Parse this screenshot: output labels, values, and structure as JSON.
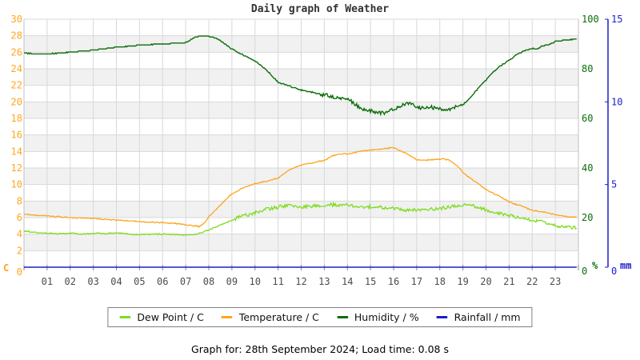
{
  "title": "Daily graph of Weather",
  "caption": "Graph for: 28th September 2024; Load time: 0.08 s",
  "legend": [
    {
      "label": "Dew Point / C",
      "color": "#7ddd1d"
    },
    {
      "label": "Temperature / C",
      "color": "#ffa41c"
    },
    {
      "label": "Humidity / %",
      "color": "#0a6d0a"
    },
    {
      "label": "Rainfall / mm",
      "color": "#1d1dc8"
    }
  ],
  "chart_data": {
    "type": "line",
    "title": "Daily graph of Weather",
    "x_unit": "hour of day",
    "x_range": [
      0,
      24
    ],
    "x_labels": [
      "01",
      "02",
      "03",
      "04",
      "05",
      "06",
      "07",
      "08",
      "09",
      "10",
      "11",
      "12",
      "13",
      "14",
      "15",
      "16",
      "17",
      "18",
      "19",
      "20",
      "21",
      "22",
      "23"
    ],
    "axes": {
      "temperature": {
        "unit": "C",
        "min": 0,
        "max": 30,
        "color": "#ffa41c",
        "tick_labels": [
          "30",
          "28",
          "26",
          "24",
          "22",
          "20",
          "18",
          "16",
          "14",
          "12",
          "10",
          "8",
          "6",
          "4",
          "2",
          "0"
        ],
        "tick_values": [
          30,
          28,
          26,
          24,
          22,
          20,
          18,
          16,
          14,
          12,
          10,
          8,
          6,
          4,
          2,
          0
        ]
      },
      "humidity": {
        "unit": "%",
        "min": 0,
        "max": 100,
        "color": "#0a6d0a",
        "tick_labels": [
          "100",
          "80",
          "60",
          "40",
          "20",
          "0"
        ],
        "tick_values": [
          100,
          80,
          60,
          40,
          20,
          0
        ]
      },
      "rainfall": {
        "unit": "mm",
        "min": 0,
        "max": 15,
        "color": "#1d1dc8",
        "tick_labels": [
          "15",
          "10",
          "5",
          "0"
        ],
        "tick_values": [
          15,
          10,
          5,
          0
        ]
      }
    },
    "style": {
      "band_fill": "#f1f1f1",
      "grid_color": "#d8d8d8",
      "border_color": "#c0c0c0",
      "tick_color": "#8a8a8a",
      "x_label_color": "#4d4d4d",
      "title_color": "#333333",
      "rain_axis_x": 760
    },
    "series": [
      {
        "name": "Humidity / %",
        "axis": "humidity",
        "color": "#0a6d0a",
        "width": 1.4,
        "noise_base": 0.12,
        "noise": 0.7,
        "noise_window": [
          12.8,
          18.7
        ],
        "quant": 0.4,
        "points": [
          [
            0,
            86.3
          ],
          [
            0.5,
            86.0
          ],
          [
            1,
            86.0
          ],
          [
            1.5,
            86.3
          ],
          [
            2,
            86.8
          ],
          [
            2.5,
            87.2
          ],
          [
            3,
            87.5
          ],
          [
            3.5,
            88.1
          ],
          [
            4,
            88.7
          ],
          [
            4.5,
            89.0
          ],
          [
            5,
            89.5
          ],
          [
            5.5,
            89.8
          ],
          [
            6,
            90.0
          ],
          [
            6.5,
            90.3
          ],
          [
            7,
            90.6
          ],
          [
            7.2,
            91.5
          ],
          [
            7.4,
            92.8
          ],
          [
            7.6,
            93.1
          ],
          [
            8,
            93.1
          ],
          [
            8.3,
            92.3
          ],
          [
            8.6,
            90.8
          ],
          [
            9,
            88.0
          ],
          [
            9.5,
            85.5
          ],
          [
            10,
            83.2
          ],
          [
            10.5,
            79.5
          ],
          [
            11,
            74.6
          ],
          [
            11.5,
            73.0
          ],
          [
            12,
            71.4
          ],
          [
            12.5,
            70.5
          ],
          [
            13,
            69.5
          ],
          [
            13.5,
            68.5
          ],
          [
            14,
            68.0
          ],
          [
            14.3,
            66.0
          ],
          [
            14.6,
            63.5
          ],
          [
            15,
            63.0
          ],
          [
            15.3,
            62.5
          ],
          [
            15.6,
            62.3
          ],
          [
            16,
            63.5
          ],
          [
            16.4,
            65.5
          ],
          [
            16.7,
            66.3
          ],
          [
            17,
            64.5
          ],
          [
            17.3,
            64.0
          ],
          [
            17.6,
            64.5
          ],
          [
            18,
            63.8
          ],
          [
            18.3,
            63.5
          ],
          [
            18.6,
            64.5
          ],
          [
            19,
            65.5
          ],
          [
            19.3,
            68.0
          ],
          [
            19.6,
            71.5
          ],
          [
            20,
            75.5
          ],
          [
            20.3,
            78.5
          ],
          [
            20.6,
            81.0
          ],
          [
            21,
            83.5
          ],
          [
            21.3,
            85.5
          ],
          [
            21.6,
            87.0
          ],
          [
            22,
            88.3
          ],
          [
            22.2,
            88.0
          ],
          [
            22.4,
            89.0
          ],
          [
            22.6,
            89.5
          ],
          [
            22.8,
            90.0
          ],
          [
            23,
            91.0
          ],
          [
            23.3,
            91.3
          ],
          [
            23.6,
            91.8
          ],
          [
            23.95,
            92.0
          ]
        ]
      },
      {
        "name": "Temperature / C",
        "axis": "temperature",
        "color": "#ffa41c",
        "width": 1.3,
        "noise_base": 0.05,
        "noise": 0,
        "noise_window": [
          0,
          0
        ],
        "quant": 0.08,
        "points": [
          [
            0,
            6.4
          ],
          [
            0.5,
            6.3
          ],
          [
            1,
            6.2
          ],
          [
            1.5,
            6.1
          ],
          [
            2,
            6.0
          ],
          [
            2.5,
            5.95
          ],
          [
            3,
            5.9
          ],
          [
            3.5,
            5.8
          ],
          [
            4,
            5.7
          ],
          [
            4.5,
            5.6
          ],
          [
            5,
            5.5
          ],
          [
            5.5,
            5.45
          ],
          [
            6,
            5.4
          ],
          [
            6.5,
            5.3
          ],
          [
            7,
            5.15
          ],
          [
            7.3,
            5.0
          ],
          [
            7.6,
            4.95
          ],
          [
            7.8,
            5.3
          ],
          [
            8,
            6.1
          ],
          [
            8.5,
            7.5
          ],
          [
            9,
            8.9
          ],
          [
            9.5,
            9.6
          ],
          [
            10,
            10.1
          ],
          [
            10.5,
            10.4
          ],
          [
            11,
            10.8
          ],
          [
            11.25,
            11.3
          ],
          [
            11.5,
            11.8
          ],
          [
            11.75,
            12.1
          ],
          [
            12,
            12.4
          ],
          [
            12.5,
            12.6
          ],
          [
            12.75,
            12.8
          ],
          [
            13,
            12.9
          ],
          [
            13.3,
            13.4
          ],
          [
            13.6,
            13.7
          ],
          [
            14,
            13.7
          ],
          [
            14.5,
            14.0
          ],
          [
            15,
            14.2
          ],
          [
            15.5,
            14.3
          ],
          [
            15.9,
            14.45
          ],
          [
            16.1,
            14.35
          ],
          [
            16.3,
            14.1
          ],
          [
            16.6,
            13.7
          ],
          [
            17,
            13.0
          ],
          [
            17.3,
            12.9
          ],
          [
            17.6,
            13.0
          ],
          [
            18,
            13.05
          ],
          [
            18.2,
            13.1
          ],
          [
            18.4,
            12.95
          ],
          [
            18.6,
            12.6
          ],
          [
            18.8,
            12.1
          ],
          [
            19,
            11.5
          ],
          [
            19.3,
            10.8
          ],
          [
            19.6,
            10.2
          ],
          [
            20,
            9.4
          ],
          [
            20.3,
            8.95
          ],
          [
            20.6,
            8.55
          ],
          [
            21,
            7.9
          ],
          [
            21.3,
            7.6
          ],
          [
            21.6,
            7.35
          ],
          [
            22,
            6.9
          ],
          [
            22.3,
            6.75
          ],
          [
            22.6,
            6.6
          ],
          [
            23,
            6.35
          ],
          [
            23.3,
            6.2
          ],
          [
            23.6,
            6.1
          ],
          [
            23.95,
            6.05
          ]
        ]
      },
      {
        "name": "Dew Point / C",
        "axis": "temperature",
        "color": "#7ddd1d",
        "width": 1.3,
        "noise_base": 0.05,
        "noise": 0.2,
        "noise_window": [
          9,
          23.9
        ],
        "quant": 0.08,
        "points": [
          [
            0,
            4.4
          ],
          [
            0.3,
            4.3
          ],
          [
            0.6,
            4.15
          ],
          [
            1,
            4.1
          ],
          [
            1.5,
            4.05
          ],
          [
            2,
            4.1
          ],
          [
            2.5,
            4.0
          ],
          [
            3,
            4.1
          ],
          [
            3.5,
            4.05
          ],
          [
            4,
            4.15
          ],
          [
            4.3,
            4.1
          ],
          [
            4.6,
            4.0
          ],
          [
            5,
            3.95
          ],
          [
            5.5,
            4.0
          ],
          [
            6,
            4.0
          ],
          [
            6.5,
            3.95
          ],
          [
            7,
            3.9
          ],
          [
            7.3,
            3.9
          ],
          [
            7.6,
            4.1
          ],
          [
            8,
            4.5
          ],
          [
            8.5,
            5.1
          ],
          [
            9,
            5.7
          ],
          [
            9.5,
            6.2
          ],
          [
            10,
            6.6
          ],
          [
            10.5,
            7.0
          ],
          [
            11,
            7.25
          ],
          [
            11.5,
            7.5
          ],
          [
            12,
            7.3
          ],
          [
            12.5,
            7.45
          ],
          [
            13,
            7.3
          ],
          [
            13.3,
            7.6
          ],
          [
            13.6,
            7.4
          ],
          [
            14,
            7.5
          ],
          [
            14.5,
            7.3
          ],
          [
            15,
            7.35
          ],
          [
            15.5,
            7.25
          ],
          [
            16,
            7.1
          ],
          [
            16.5,
            6.95
          ],
          [
            17,
            6.9
          ],
          [
            17.5,
            7.0
          ],
          [
            18,
            7.1
          ],
          [
            18.5,
            7.35
          ],
          [
            19,
            7.5
          ],
          [
            19.3,
            7.55
          ],
          [
            19.6,
            7.3
          ],
          [
            20,
            6.9
          ],
          [
            20.5,
            6.55
          ],
          [
            21,
            6.25
          ],
          [
            21.5,
            5.95
          ],
          [
            22,
            5.7
          ],
          [
            22.5,
            5.45
          ],
          [
            23,
            5.0
          ],
          [
            23.3,
            4.85
          ],
          [
            23.6,
            4.8
          ],
          [
            23.95,
            4.75
          ]
        ]
      },
      {
        "name": "Rainfall / mm",
        "axis": "rainfall",
        "color": "#1d1dc8",
        "width": 1.5,
        "noise_base": 0,
        "noise": 0,
        "noise_window": [
          0,
          0
        ],
        "quant": 0,
        "points": [
          [
            0,
            0
          ],
          [
            23.95,
            0
          ]
        ]
      }
    ]
  }
}
